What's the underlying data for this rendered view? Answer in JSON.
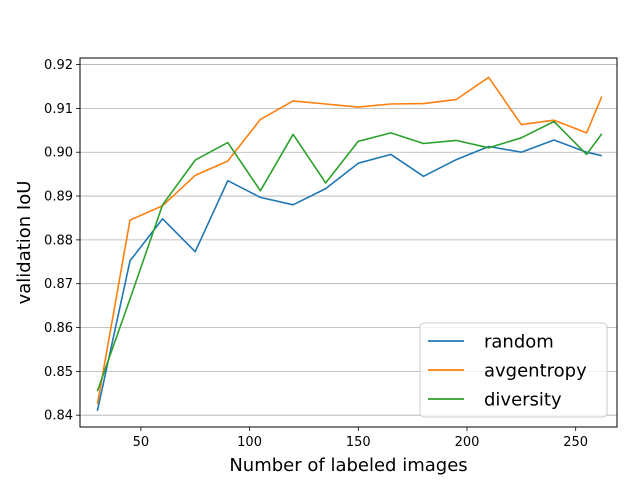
{
  "chart_data": {
    "type": "line",
    "title": "",
    "xlabel": "Number of labeled images",
    "ylabel": "validation IoU",
    "xlim": [
      22,
      269
    ],
    "ylim": [
      0.8373,
      0.9215
    ],
    "xticks": [
      50,
      100,
      150,
      200,
      250
    ],
    "yticks": [
      0.84,
      0.85,
      0.86,
      0.87,
      0.88,
      0.89,
      0.9,
      0.91,
      0.92
    ],
    "ytick_labels": [
      "0.84",
      "0.85",
      "0.86",
      "0.87",
      "0.88",
      "0.89",
      "0.90",
      "0.91",
      "0.92"
    ],
    "xtick_labels": [
      "50",
      "100",
      "150",
      "200",
      "250"
    ],
    "grid": "horizontal",
    "legend_position": "lower-right",
    "series": [
      {
        "name": "random",
        "color": "#1f77b4",
        "x": [
          30,
          45,
          60,
          75,
          90,
          105,
          120,
          135,
          150,
          165,
          180,
          195,
          210,
          225,
          240,
          255,
          262
        ],
        "y": [
          0.841,
          0.8752,
          0.8848,
          0.8773,
          0.8935,
          0.8897,
          0.888,
          0.8917,
          0.8975,
          0.8995,
          0.8945,
          0.8983,
          0.9013,
          0.9,
          0.9028,
          0.9,
          0.8992
        ]
      },
      {
        "name": "avgentropy",
        "color": "#ff7f0e",
        "x": [
          30,
          45,
          60,
          75,
          90,
          105,
          120,
          135,
          150,
          165,
          180,
          195,
          210,
          225,
          240,
          255,
          262
        ],
        "y": [
          0.8425,
          0.8845,
          0.8878,
          0.8947,
          0.898,
          0.9075,
          0.9117,
          0.911,
          0.9103,
          0.911,
          0.9111,
          0.912,
          0.9171,
          0.9063,
          0.9073,
          0.9044,
          0.9127
        ]
      },
      {
        "name": "diversity",
        "color": "#2ca02c",
        "x": [
          30,
          45,
          60,
          75,
          90,
          105,
          120,
          135,
          150,
          165,
          180,
          195,
          210,
          225,
          240,
          255,
          262
        ],
        "y": [
          0.8455,
          0.8665,
          0.888,
          0.8982,
          0.9022,
          0.8912,
          0.9041,
          0.893,
          0.9025,
          0.9044,
          0.902,
          0.9027,
          0.901,
          0.9033,
          0.907,
          0.8995,
          0.9042
        ]
      }
    ]
  }
}
